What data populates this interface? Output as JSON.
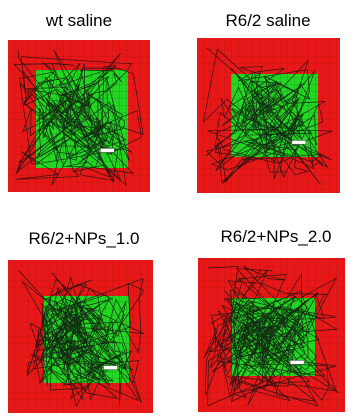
{
  "panels": [
    {
      "title": "wt saline"
    },
    {
      "title": "R6/2 saline"
    },
    {
      "title": "R6/2+NPs_1.0"
    },
    {
      "title": "R6/2+NPs_2.0"
    }
  ]
}
